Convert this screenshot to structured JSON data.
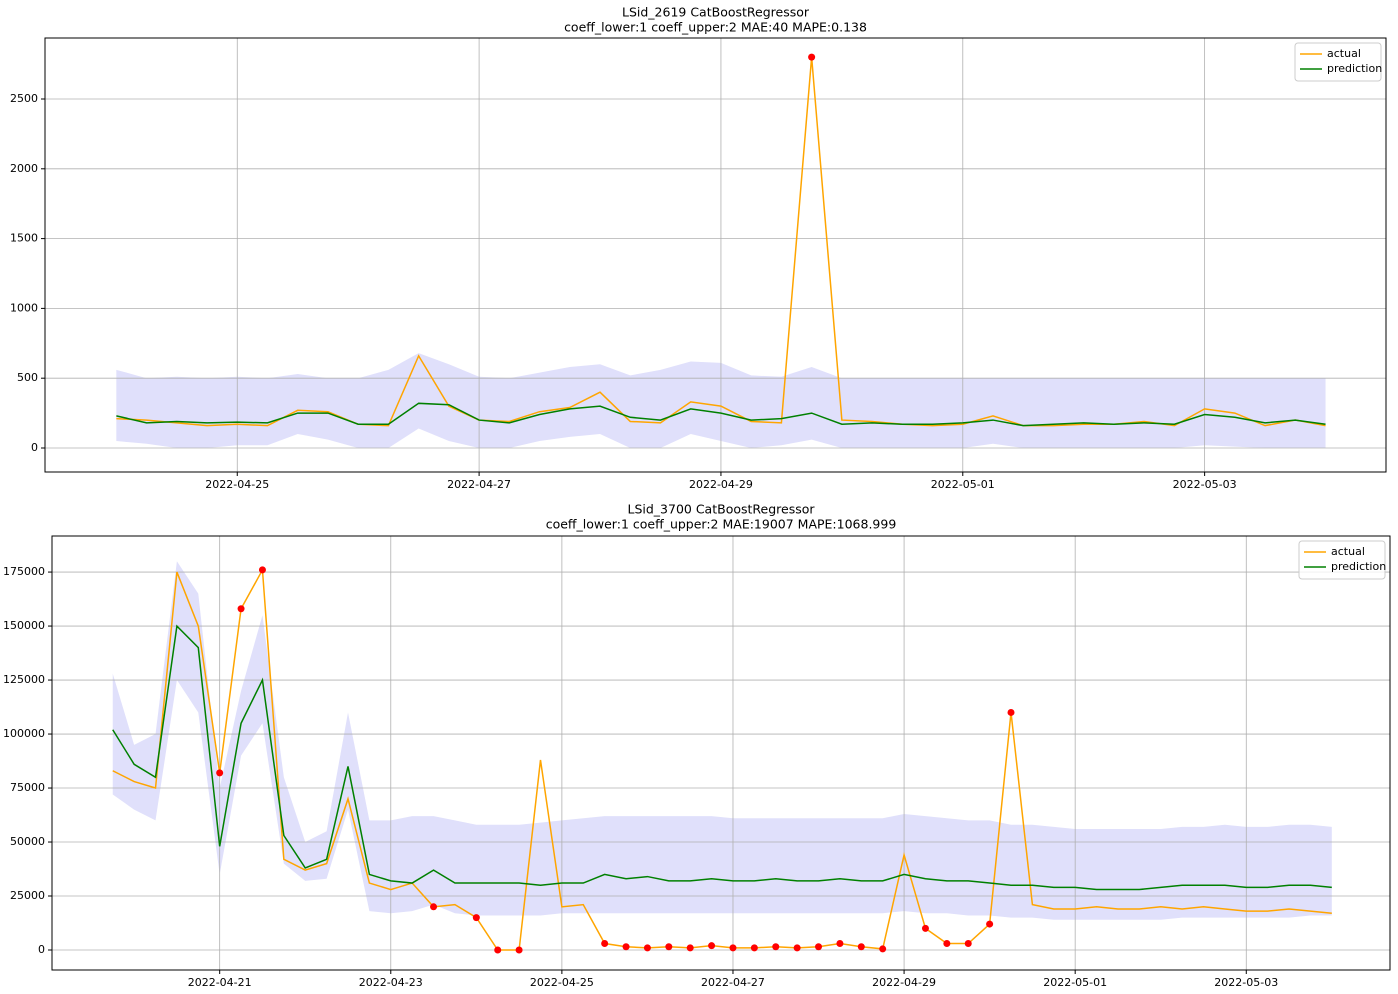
{
  "chart_data": [
    {
      "type": "line",
      "title": "LSid_2619 CatBoostRegressor",
      "subtitle": "coeff_lower:1 coeff_upper:2 MAE:40 MAPE:0.138",
      "x": [
        24,
        24.25,
        24.5,
        24.75,
        25,
        25.25,
        25.5,
        25.75,
        26,
        26.25,
        26.5,
        26.75,
        27,
        27.25,
        27.5,
        27.75,
        28,
        28.25,
        28.5,
        28.75,
        29,
        29.25,
        29.5,
        29.75,
        30,
        30.25,
        30.5,
        30.75,
        31,
        31.25,
        31.5,
        31.75,
        32,
        32.25,
        32.5,
        32.75,
        33,
        33.25,
        33.5,
        33.75,
        34
      ],
      "series": [
        {
          "name": "actual",
          "color": "#ffa500",
          "values": [
            210,
            200,
            180,
            160,
            170,
            160,
            270,
            260,
            170,
            160,
            660,
            300,
            200,
            190,
            260,
            290,
            400,
            190,
            180,
            330,
            300,
            190,
            180,
            2800,
            200,
            190,
            170,
            160,
            170,
            230,
            160,
            160,
            170,
            170,
            190,
            160,
            280,
            250,
            160,
            200,
            160
          ]
        },
        {
          "name": "prediction",
          "color": "#008000",
          "values": [
            230,
            180,
            190,
            180,
            185,
            180,
            250,
            250,
            170,
            170,
            320,
            310,
            200,
            180,
            240,
            280,
            300,
            220,
            200,
            280,
            250,
            200,
            210,
            250,
            170,
            180,
            170,
            170,
            180,
            200,
            160,
            170,
            180,
            170,
            180,
            170,
            240,
            220,
            180,
            200,
            170
          ]
        }
      ],
      "band": {
        "color": "#e0e0fb",
        "upper": [
          560,
          500,
          510,
          500,
          510,
          500,
          530,
          500,
          500,
          560,
          680,
          600,
          510,
          500,
          540,
          580,
          600,
          520,
          560,
          620,
          610,
          520,
          510,
          580,
          500,
          500,
          500,
          500,
          500,
          500,
          500,
          500,
          500,
          500,
          500,
          500,
          500,
          500,
          500,
          500,
          500
        ],
        "lower": [
          50,
          30,
          0,
          0,
          20,
          20,
          100,
          60,
          0,
          0,
          140,
          50,
          0,
          0,
          50,
          80,
          100,
          0,
          0,
          100,
          50,
          0,
          20,
          60,
          0,
          0,
          0,
          0,
          0,
          30,
          0,
          0,
          0,
          0,
          0,
          0,
          20,
          10,
          0,
          0,
          0
        ]
      },
      "anomalies": {
        "color": "#ff0000",
        "x": [
          29.75
        ],
        "values": [
          2800
        ]
      },
      "xlim": [
        23.41,
        34.5
      ],
      "xticks": [
        {
          "value": 25,
          "label": "2022-04-25"
        },
        {
          "value": 27,
          "label": "2022-04-27"
        },
        {
          "value": 29,
          "label": "2022-04-29"
        },
        {
          "value": 31,
          "label": "2022-05-01"
        },
        {
          "value": 33,
          "label": "2022-05-03"
        }
      ],
      "ylim": [
        -172,
        2937
      ],
      "yticks": [
        0,
        500,
        1000,
        1500,
        2000,
        2500
      ],
      "grid": true,
      "legend": "upper right"
    },
    {
      "type": "line",
      "title": "LSid_3700 CatBoostRegressor",
      "subtitle": "coeff_lower:1 coeff_upper:2 MAE:19007 MAPE:1068.999",
      "x": [
        19.75,
        20,
        20.25,
        20.5,
        20.75,
        21,
        21.25,
        21.5,
        21.75,
        22,
        22.25,
        22.5,
        22.75,
        23,
        23.25,
        23.5,
        23.75,
        24,
        24.25,
        24.5,
        24.75,
        25,
        25.25,
        25.5,
        25.75,
        26,
        26.25,
        26.5,
        26.75,
        27,
        27.25,
        27.5,
        27.75,
        28,
        28.25,
        28.5,
        28.75,
        29,
        29.25,
        29.5,
        29.75,
        30,
        30.25,
        30.5,
        30.75,
        31,
        31.25,
        31.5,
        31.75,
        32,
        32.25,
        32.5,
        32.75,
        33,
        33.25,
        33.5,
        33.75,
        34
      ],
      "series": [
        {
          "name": "actual",
          "color": "#ffa500",
          "values": [
            83000,
            78000,
            75000,
            175000,
            150000,
            82000,
            158000,
            176000,
            42000,
            37000,
            40000,
            70000,
            31000,
            28000,
            31000,
            20000,
            21000,
            15000,
            0,
            0,
            88000,
            20000,
            21000,
            3000,
            1500,
            1000,
            1500,
            1000,
            2000,
            1000,
            1000,
            1500,
            1000,
            1500,
            3000,
            1500,
            500,
            44000,
            10000,
            3000,
            3000,
            12000,
            110000,
            21000,
            19000,
            19000,
            20000,
            19000,
            19000,
            20000,
            19000,
            20000,
            19000,
            18000,
            18000,
            19000,
            18000,
            17000
          ]
        },
        {
          "name": "prediction",
          "color": "#008000",
          "values": [
            102000,
            86000,
            80000,
            150000,
            140000,
            48000,
            105000,
            125000,
            53000,
            38000,
            42000,
            85000,
            35000,
            32000,
            31000,
            37000,
            31000,
            31000,
            31000,
            31000,
            30000,
            31000,
            31000,
            35000,
            33000,
            34000,
            32000,
            32000,
            33000,
            32000,
            32000,
            33000,
            32000,
            32000,
            33000,
            32000,
            32000,
            35000,
            33000,
            32000,
            32000,
            31000,
            30000,
            30000,
            29000,
            29000,
            28000,
            28000,
            28000,
            29000,
            30000,
            30000,
            30000,
            29000,
            29000,
            30000,
            30000,
            29000
          ]
        }
      ],
      "band": {
        "color": "#e0e0fb",
        "upper": [
          128000,
          95000,
          100000,
          180000,
          165000,
          75000,
          120000,
          155000,
          80000,
          50000,
          55000,
          110000,
          60000,
          60000,
          62000,
          62000,
          60000,
          58000,
          58000,
          58000,
          59000,
          60000,
          61000,
          62000,
          62000,
          62000,
          62000,
          62000,
          62000,
          61000,
          61000,
          61000,
          61000,
          61000,
          61000,
          61000,
          61000,
          63000,
          62000,
          61000,
          60000,
          60000,
          58000,
          58000,
          57000,
          56000,
          56000,
          56000,
          56000,
          56000,
          57000,
          57000,
          58000,
          57000,
          57000,
          58000,
          58000,
          57000
        ],
        "lower": [
          72000,
          65000,
          60000,
          125000,
          110000,
          35000,
          90000,
          105000,
          40000,
          32000,
          33000,
          65000,
          18000,
          17000,
          18000,
          21000,
          17000,
          16000,
          16000,
          16000,
          16000,
          17000,
          17000,
          17000,
          17000,
          17000,
          17000,
          17000,
          17000,
          17000,
          17000,
          17000,
          17000,
          17000,
          17000,
          17000,
          17000,
          18000,
          17000,
          17000,
          16000,
          16000,
          15000,
          15000,
          14000,
          14000,
          14000,
          14000,
          14000,
          14000,
          15000,
          15000,
          15000,
          15000,
          15000,
          15000,
          16000,
          16000
        ]
      },
      "anomalies": {
        "color": "#ff0000",
        "x": [
          21,
          21.25,
          21.5,
          23.5,
          24,
          24.25,
          24.5,
          25.5,
          25.75,
          26,
          26.25,
          26.5,
          26.75,
          27,
          27.25,
          27.5,
          27.75,
          28,
          28.25,
          28.5,
          28.75,
          29.25,
          29.5,
          29.75,
          30,
          30.25
        ],
        "values": [
          82000,
          158000,
          176000,
          20000,
          15000,
          0,
          0,
          3000,
          1500,
          1000,
          1500,
          1000,
          2000,
          1000,
          1000,
          1500,
          1000,
          1500,
          3000,
          1500,
          500,
          10000,
          3000,
          3000,
          12000,
          110000
        ]
      },
      "xlim": [
        19.04,
        34.68
      ],
      "xticks": [
        {
          "value": 21,
          "label": "2022-04-21"
        },
        {
          "value": 23,
          "label": "2022-04-23"
        },
        {
          "value": 25,
          "label": "2022-04-25"
        },
        {
          "value": 27,
          "label": "2022-04-27"
        },
        {
          "value": 29,
          "label": "2022-04-29"
        },
        {
          "value": 31,
          "label": "2022-05-01"
        },
        {
          "value": 33,
          "label": "2022-05-03"
        }
      ],
      "ylim": [
        -9260,
        191700
      ],
      "yticks": [
        0,
        25000,
        50000,
        75000,
        100000,
        125000,
        150000,
        175000
      ],
      "grid": true,
      "legend": "upper right"
    }
  ]
}
